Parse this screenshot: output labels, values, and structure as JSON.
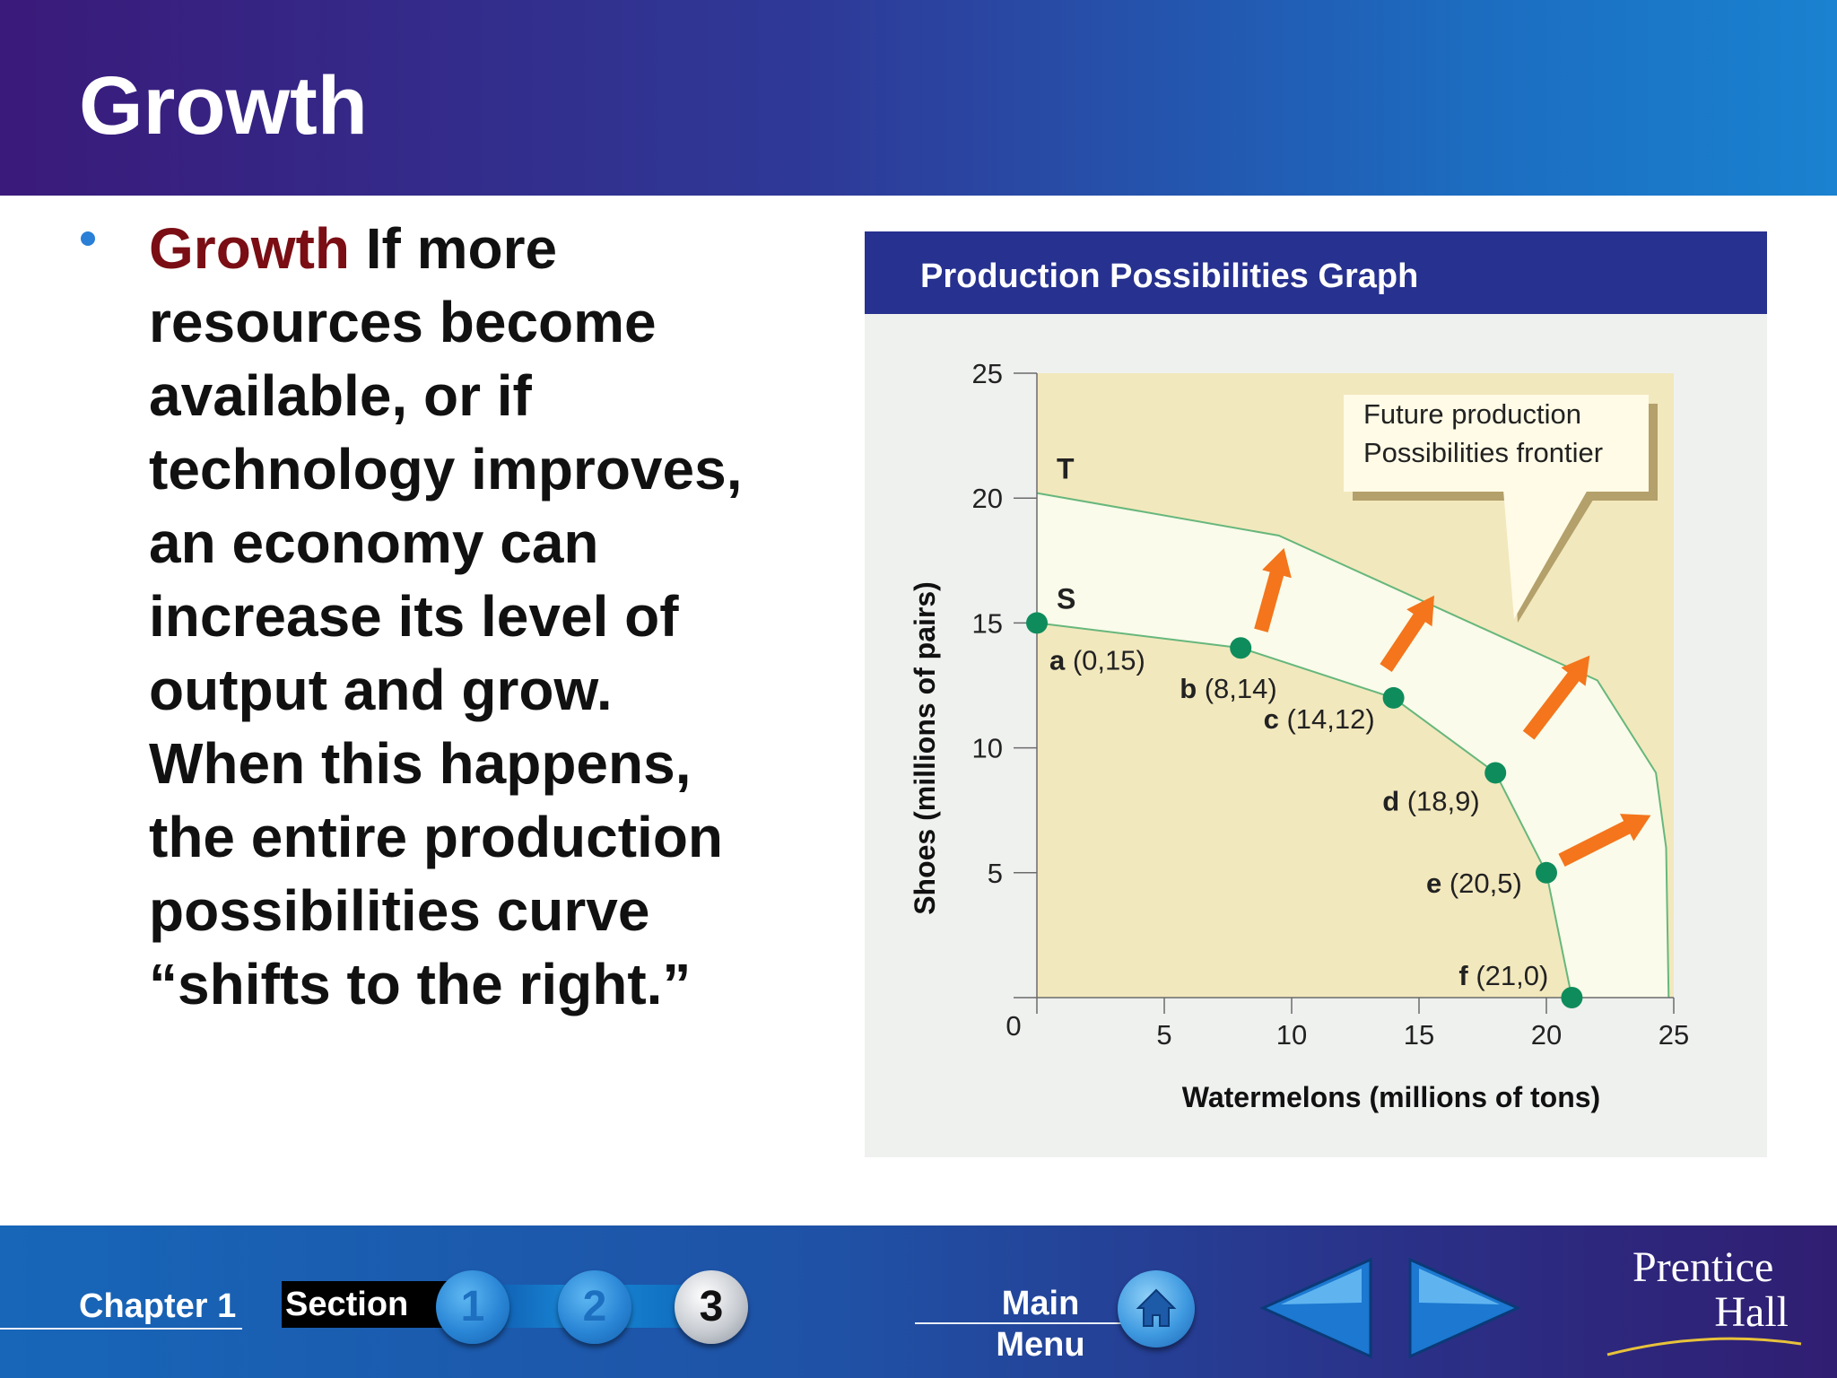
{
  "slide": {
    "title": "Growth",
    "bullet": {
      "term": "Growth",
      "lines": [
        "If more",
        "resources become",
        "available, or if",
        "technology improves,",
        "an economy can",
        "increase its level of",
        "output and grow.",
        "When this happens,",
        "the entire production",
        "possibilities curve",
        "“shifts to the right.”"
      ]
    }
  },
  "figure": {
    "header": "Production Possibilities Graph",
    "callout": [
      "Future production",
      "Possibilities frontier"
    ],
    "curve_labels": {
      "future": "T",
      "current": "S"
    }
  },
  "chart_data": {
    "type": "line",
    "title": "",
    "xlabel": "Watermelons (millions of tons)",
    "ylabel": "Shoes (millions of pairs)",
    "xlim": [
      0,
      25
    ],
    "ylim": [
      0,
      25
    ],
    "x_ticks": [
      "0",
      "5",
      "10",
      "15",
      "20",
      "25"
    ],
    "y_ticks": [
      "5",
      "10",
      "15",
      "20",
      "25"
    ],
    "series": [
      {
        "label": "S",
        "points": [
          {
            "name": "a",
            "coord": "(0,15)",
            "x": 0,
            "y": 15
          },
          {
            "name": "b",
            "coord": "(8,14)",
            "x": 8,
            "y": 14
          },
          {
            "name": "c",
            "coord": "(14,12)",
            "x": 14,
            "y": 12
          },
          {
            "name": "d",
            "coord": "(18,9)",
            "x": 18,
            "y": 9
          },
          {
            "name": "e",
            "coord": "(20,5)",
            "x": 20,
            "y": 5
          },
          {
            "name": "f",
            "coord": "(21,0)",
            "x": 21,
            "y": 0
          }
        ]
      },
      {
        "label": "T",
        "points": [
          {
            "x": 0,
            "y": 20.2
          },
          {
            "x": 9.5,
            "y": 18.5
          },
          {
            "x": 22,
            "y": 12.7
          },
          {
            "x": 24.3,
            "y": 9
          },
          {
            "x": 24.7,
            "y": 6
          },
          {
            "x": 24.8,
            "y": 0
          }
        ]
      }
    ],
    "shift_arrows": [
      {
        "from": [
          8.8,
          14.7
        ],
        "to": [
          9.7,
          18.0
        ]
      },
      {
        "from": [
          13.7,
          13.2
        ],
        "to": [
          15.6,
          16.1
        ]
      },
      {
        "from": [
          19.3,
          10.5
        ],
        "to": [
          21.7,
          13.7
        ]
      },
      {
        "from": [
          20.6,
          5.5
        ],
        "to": [
          24.1,
          7.3
        ]
      }
    ],
    "colors": {
      "plot_bg": "#f2e8bd",
      "region": "#fafbea",
      "curve": "#67b77c",
      "point": "#0f8c5c",
      "arrow": "#f4751b"
    }
  },
  "footer": {
    "chapter": "Chapter 1",
    "section": "Section",
    "section_buttons": [
      "1",
      "2",
      "3"
    ],
    "active_section": "3",
    "main_menu": [
      "Main",
      "Menu"
    ],
    "icons": [
      "home-icon",
      "arrow-left-icon",
      "arrow-right-icon"
    ],
    "brand": [
      "Prentice",
      "Hall"
    ]
  }
}
